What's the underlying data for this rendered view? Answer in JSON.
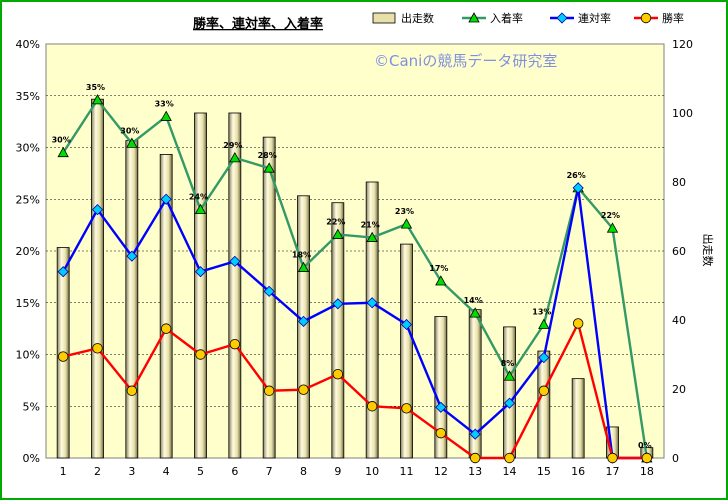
{
  "chart_data": {
    "type": "bar+line",
    "title": "勝率、連対率、入着率",
    "watermark": "©Caniの競馬データ研究室",
    "categories": [
      "1",
      "2",
      "3",
      "4",
      "5",
      "6",
      "7",
      "8",
      "9",
      "10",
      "11",
      "12",
      "13",
      "14",
      "15",
      "16",
      "17",
      "18"
    ],
    "bar_series": {
      "name": "出走数",
      "values": [
        61,
        104,
        92,
        88,
        100,
        100,
        93,
        76,
        74,
        80,
        62,
        41,
        43,
        38,
        31,
        23,
        9,
        3
      ],
      "color": "#e8e0a8"
    },
    "series": [
      {
        "name": "入着率",
        "axis": "left",
        "color": "#339966",
        "marker": "triangle",
        "marker_color": "#00dd00",
        "values": [
          29.5,
          34.6,
          30.4,
          33.0,
          24.0,
          29.0,
          28.0,
          18.4,
          21.6,
          21.3,
          22.6,
          17.1,
          14.0,
          7.9,
          12.9,
          26.1,
          22.2,
          0
        ]
      },
      {
        "name": "連対率",
        "axis": "left",
        "color": "#0000ff",
        "marker": "diamond",
        "marker_color": "#00ccff",
        "values": [
          18.0,
          24.0,
          19.5,
          25.0,
          18.0,
          19.0,
          16.1,
          13.2,
          14.9,
          15.0,
          12.9,
          4.9,
          2.3,
          5.3,
          9.7,
          26.1,
          0,
          0
        ]
      },
      {
        "name": "勝率",
        "axis": "left",
        "color": "#ff0000",
        "marker": "circle",
        "marker_color": "#ffcc00",
        "values": [
          9.8,
          10.6,
          6.5,
          12.5,
          10.0,
          11.0,
          6.5,
          6.6,
          8.1,
          5.0,
          4.8,
          2.4,
          0,
          0,
          6.5,
          13.0,
          0,
          0
        ]
      }
    ],
    "data_labels": [
      "30%",
      "35%",
      "30%",
      "33%",
      "24%",
      "29%",
      "28%",
      "18%",
      "22%",
      "21%",
      "23%",
      "17%",
      "14%",
      "8%",
      "13%",
      "26%",
      "22%",
      "0%"
    ],
    "y_left": {
      "min": 0,
      "max": 40,
      "step": 5,
      "ticks": [
        "0%",
        "5%",
        "10%",
        "15%",
        "20%",
        "25%",
        "30%",
        "35%",
        "40%"
      ]
    },
    "y_right": {
      "label": "出走数",
      "min": 0,
      "max": 120,
      "step": 20,
      "ticks": [
        "0",
        "20",
        "40",
        "60",
        "80",
        "100",
        "120"
      ]
    },
    "legend": {
      "placement": "top-right",
      "items": [
        {
          "name": "出走数",
          "kind": "bar",
          "color": "#e8e0a8"
        },
        {
          "name": "入着率",
          "kind": "line",
          "color": "#339966",
          "marker": "triangle",
          "marker_color": "#00dd00"
        },
        {
          "name": "連対率",
          "kind": "line",
          "color": "#0000ff",
          "marker": "diamond",
          "marker_color": "#00ccff"
        },
        {
          "name": "勝率",
          "kind": "line",
          "color": "#ff0000",
          "marker": "circle",
          "marker_color": "#ffcc00"
        }
      ]
    },
    "grid": true,
    "plot_background": "#ffffcc",
    "page_border": "#00aa00"
  }
}
